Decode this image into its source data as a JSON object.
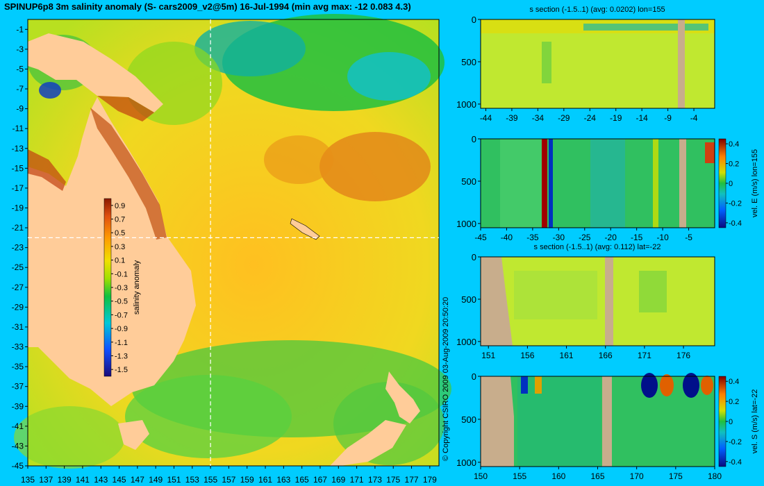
{
  "main_title": "SPINUP6p8 3m salinity anomaly (S- cars2009_v2@5m) 16-Jul-1994 (min avg max: -12 0.083 4.3)",
  "copyright": "© Copyright CSIRO 2009   03-Aug-2009 20:50:20",
  "colors": {
    "background": "#00ccff",
    "land": "#ffcc99",
    "section_land": "#c8ad8c",
    "crosshair": "#ffffff"
  },
  "chart_data": [
    {
      "type": "heatmap",
      "name": "salinity-map",
      "title": "",
      "x_ticks": [
        135,
        137,
        139,
        141,
        143,
        145,
        147,
        149,
        151,
        153,
        155,
        157,
        159,
        161,
        163,
        165,
        167,
        169,
        171,
        173,
        175,
        177,
        179
      ],
      "y_ticks": [
        -1,
        -3,
        -5,
        -7,
        -9,
        -11,
        -13,
        -15,
        -17,
        -19,
        -21,
        -23,
        -25,
        -27,
        -29,
        -31,
        -33,
        -35,
        -37,
        -39,
        -41,
        -43,
        -45
      ],
      "xlim": [
        135,
        180
      ],
      "ylim": [
        -45,
        0
      ],
      "crosshair": {
        "lon": 155,
        "lat": -22
      },
      "colorbar": {
        "label": "salinity anomaly",
        "ticks": [
          "0.9",
          "0.7",
          "0.5",
          "0.3",
          "0.1",
          "-0.1",
          "-0.3",
          "-0.5",
          "-0.7",
          "-0.9",
          "-1.1",
          "-1.3",
          "-1.5"
        ],
        "range": [
          -1.6,
          1.0
        ]
      }
    },
    {
      "type": "heatmap",
      "name": "s-section-lon155",
      "title": "s section (-1.5..1) (avg: 0.0202) lon=155",
      "x_ticks": [
        "-44",
        "-39",
        "-34",
        "-29",
        "-24",
        "-19",
        "-14",
        "-9",
        "-4"
      ],
      "xlim": [
        -45,
        0
      ],
      "y_ticks": [
        "0",
        "500",
        "1000"
      ],
      "ylim": [
        0,
        1050
      ]
    },
    {
      "type": "heatmap",
      "name": "vel-e-section-lon155",
      "title": "",
      "x_ticks": [
        "-45",
        "-40",
        "-35",
        "-30",
        "-25",
        "-20",
        "-15",
        "-10",
        "-5"
      ],
      "xlim": [
        -45,
        0
      ],
      "y_ticks": [
        "0",
        "500",
        "1000"
      ],
      "ylim": [
        0,
        1050
      ],
      "colorbar": {
        "label": "vel. E (m/s) lon=155",
        "ticks": [
          "0.4",
          "0.2",
          "0",
          "-0.2",
          "-0.4"
        ],
        "range": [
          -0.45,
          0.45
        ]
      }
    },
    {
      "type": "heatmap",
      "name": "s-section-lat-22",
      "title": "s section (-1.5..1) (avg: 0.112) lat=-22",
      "x_ticks": [
        "151",
        "156",
        "161",
        "166",
        "171",
        "176"
      ],
      "xlim": [
        150,
        180
      ],
      "y_ticks": [
        "0",
        "500",
        "1000"
      ],
      "ylim": [
        0,
        1050
      ]
    },
    {
      "type": "heatmap",
      "name": "vel-s-section-lat-22",
      "title": "",
      "x_ticks": [
        "150",
        "155",
        "160",
        "165",
        "170",
        "175",
        "180"
      ],
      "xlim": [
        150,
        180
      ],
      "y_ticks": [
        "0",
        "500",
        "1000"
      ],
      "ylim": [
        0,
        1050
      ],
      "colorbar": {
        "label": "vel. S (m/s) lat=-22",
        "ticks": [
          "0.4",
          "0.2",
          "0",
          "-0.2",
          "-0.4"
        ],
        "range": [
          -0.45,
          0.45
        ]
      }
    }
  ]
}
